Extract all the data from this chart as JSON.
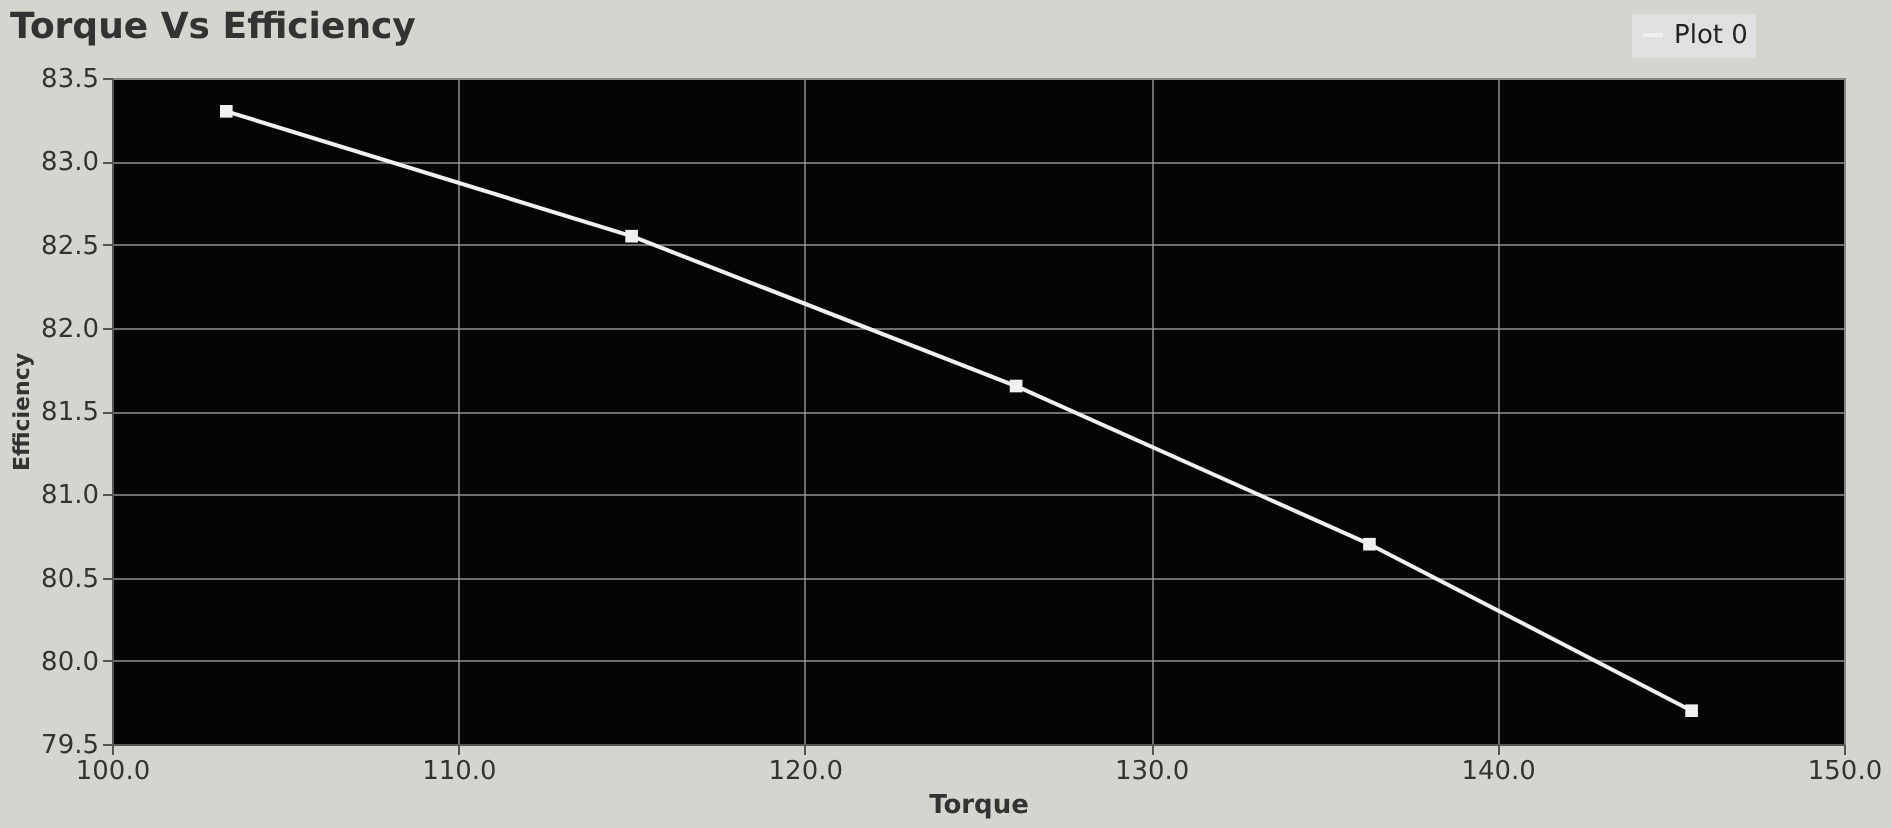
{
  "chart_data": {
    "type": "line",
    "title": "Torque Vs Efficiency",
    "xlabel": "Torque",
    "ylabel": "Efficiency",
    "series": [
      {
        "name": "Plot 0",
        "color": "#f0f0f0",
        "x": [
          103.3,
          115.0,
          126.1,
          136.3,
          145.6
        ],
        "values": [
          83.3,
          82.55,
          81.65,
          80.7,
          79.7
        ]
      }
    ],
    "xlim": [
      100,
      150
    ],
    "xticks": [
      {
        "value": 100,
        "label": "100.0"
      },
      {
        "value": 110,
        "label": "110.0"
      },
      {
        "value": 120,
        "label": "120.0"
      },
      {
        "value": 130,
        "label": "130.0"
      },
      {
        "value": 140,
        "label": "140.0"
      },
      {
        "value": 150,
        "label": "150.0"
      }
    ],
    "ylim": [
      79.5,
      83.5
    ],
    "yticks": [
      {
        "value": 79.5,
        "label": "79.5"
      },
      {
        "value": 80,
        "label": "80.0"
      },
      {
        "value": 80.5,
        "label": "80.5"
      },
      {
        "value": 81,
        "label": "81.0"
      },
      {
        "value": 81.5,
        "label": "81.5"
      },
      {
        "value": 82,
        "label": "82.0"
      },
      {
        "value": 82.5,
        "label": "82.5"
      },
      {
        "value": 83,
        "label": "83.0"
      },
      {
        "value": 83.5,
        "label": "83.5"
      }
    ],
    "grid": true,
    "legend": "top right",
    "marker": "square",
    "line_style": "solid"
  }
}
